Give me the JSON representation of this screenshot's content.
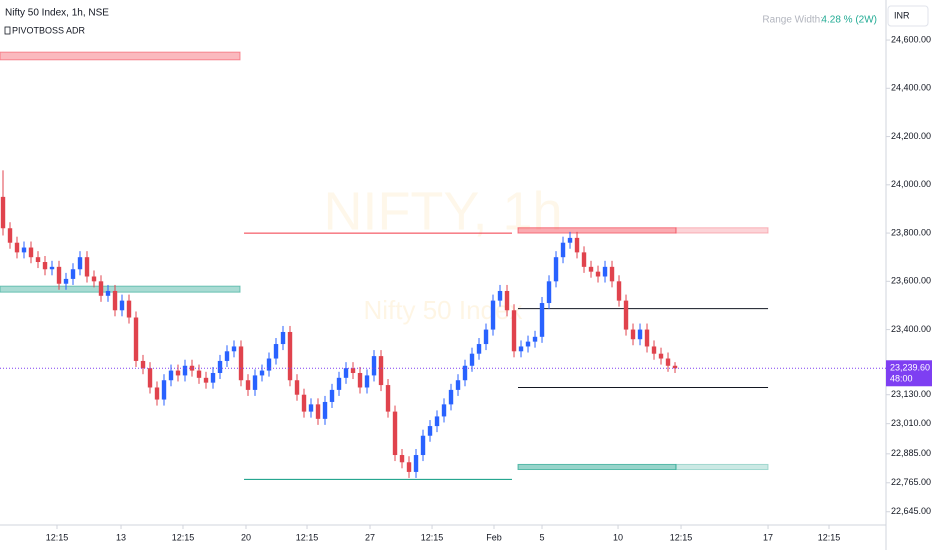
{
  "chart_data": {
    "type": "candlestick",
    "title": "Nifty 50 Index, 1h, NSE",
    "indicator": "PIVOTBOSS ADR",
    "watermark": "NIFTY, 1h",
    "watermark_sub": "Nifty 50 Index",
    "range_label": "Range Width:",
    "range_value": "4.28 % (2W)",
    "currency": "INR",
    "up_color": "#2962ff",
    "down_color": "#e0434d",
    "open": [
      23950,
      23820,
      23760,
      23720,
      23740,
      23700,
      23680,
      23650,
      23660,
      23590,
      23610,
      23650,
      23700,
      23620,
      23600,
      23540,
      23560,
      23480,
      23520,
      23450,
      23270,
      23240,
      23160,
      23110,
      23190,
      23230,
      23210,
      23250,
      23230,
      23200,
      23180,
      23220,
      23270,
      23310,
      23330,
      23190,
      23150,
      23210,
      23230,
      23280,
      23340,
      23390,
      23190,
      23130,
      23060,
      23090,
      23030,
      23100,
      23150,
      23200,
      23240,
      23220,
      23160,
      23210,
      23290,
      23170,
      23060,
      22880,
      22850,
      22810,
      22880,
      22960,
      23000,
      23040,
      23090,
      23150,
      23190,
      23250,
      23300,
      23340,
      23400,
      23520,
      23560,
      23480,
      23310,
      23330,
      23350,
      23370,
      23510,
      23600,
      23700,
      23760,
      23780,
      23720,
      23660,
      23640,
      23620,
      23660,
      23600,
      23520,
      23400,
      23360,
      23400,
      23330,
      23300,
      23280,
      23250
    ],
    "high": [
      24060,
      23845,
      23785,
      23765,
      23765,
      23725,
      23705,
      23685,
      23685,
      23635,
      23675,
      23725,
      23725,
      23645,
      23625,
      23585,
      23585,
      23545,
      23545,
      23475,
      23295,
      23265,
      23185,
      23215,
      23255,
      23255,
      23275,
      23275,
      23255,
      23225,
      23245,
      23295,
      23335,
      23355,
      23355,
      23215,
      23235,
      23255,
      23305,
      23365,
      23415,
      23415,
      23215,
      23155,
      23115,
      23115,
      23125,
      23175,
      23225,
      23265,
      23265,
      23245,
      23235,
      23315,
      23315,
      23195,
      23085,
      22905,
      22875,
      22905,
      22985,
      23025,
      23065,
      23115,
      23175,
      23215,
      23275,
      23325,
      23365,
      23425,
      23545,
      23585,
      23585,
      23505,
      23355,
      23375,
      23395,
      23535,
      23625,
      23725,
      23785,
      23805,
      23805,
      23745,
      23685,
      23665,
      23685,
      23685,
      23625,
      23545,
      23425,
      23425,
      23425,
      23355,
      23325,
      23305,
      23265
    ],
    "low": [
      23790,
      23735,
      23695,
      23695,
      23675,
      23655,
      23625,
      23625,
      23565,
      23565,
      23585,
      23625,
      23595,
      23575,
      23515,
      23515,
      23455,
      23455,
      23425,
      23245,
      23215,
      23135,
      23085,
      23085,
      23165,
      23185,
      23185,
      23205,
      23175,
      23155,
      23155,
      23195,
      23245,
      23285,
      23165,
      23125,
      23125,
      23185,
      23205,
      23255,
      23315,
      23165,
      23105,
      23035,
      23035,
      23005,
      23005,
      23075,
      23125,
      23175,
      23195,
      23135,
      23135,
      23185,
      23145,
      23035,
      22855,
      22825,
      22785,
      22785,
      22855,
      22935,
      22975,
      23015,
      23065,
      23125,
      23165,
      23225,
      23275,
      23315,
      23375,
      23495,
      23455,
      23285,
      23285,
      23305,
      23325,
      23345,
      23485,
      23575,
      23675,
      23735,
      23695,
      23635,
      23615,
      23595,
      23595,
      23575,
      23495,
      23375,
      23335,
      23335,
      23305,
      23275,
      23255,
      23225,
      23220
    ],
    "close": [
      23820,
      23760,
      23720,
      23740,
      23700,
      23680,
      23650,
      23660,
      23590,
      23610,
      23650,
      23700,
      23620,
      23600,
      23540,
      23560,
      23480,
      23520,
      23450,
      23270,
      23240,
      23160,
      23110,
      23190,
      23230,
      23210,
      23250,
      23230,
      23200,
      23180,
      23220,
      23270,
      23310,
      23330,
      23190,
      23150,
      23210,
      23230,
      23280,
      23340,
      23390,
      23190,
      23130,
      23060,
      23090,
      23030,
      23100,
      23150,
      23200,
      23240,
      23220,
      23160,
      23210,
      23290,
      23170,
      23060,
      22880,
      22850,
      22810,
      22880,
      22960,
      23000,
      23040,
      23090,
      23150,
      23190,
      23250,
      23300,
      23340,
      23400,
      23520,
      23560,
      23480,
      23310,
      23330,
      23350,
      23370,
      23510,
      23600,
      23700,
      23760,
      23780,
      23720,
      23660,
      23640,
      23620,
      23660,
      23600,
      23520,
      23400,
      23360,
      23400,
      23330,
      23300,
      23280,
      23250,
      23239.6
    ],
    "levels": [
      {
        "from": -0.43,
        "to": 33.86,
        "upper": 24550,
        "lower": 24518,
        "color": "#f23645",
        "opacity": 0.5
      },
      {
        "from": -0.43,
        "to": 33.86,
        "upper": 23580,
        "lower": 23555,
        "color": "#089981",
        "opacity": 0.5
      },
      {
        "from": 34.43,
        "to": 72.71,
        "price": 23800,
        "color": "#f23645",
        "opacity": 1
      },
      {
        "from": 34.43,
        "to": 72.71,
        "price": 22779,
        "color": "#089981",
        "opacity": 1
      },
      {
        "from": 73.57,
        "to": 96.14,
        "upper": 23822,
        "lower": 23800,
        "color": "#f23645",
        "opacity": 0.6
      },
      {
        "from": 96.14,
        "to": 109.29,
        "upper": 23822,
        "lower": 23800,
        "color": "#f23645",
        "opacity": 0.3
      },
      {
        "from": 73.57,
        "to": 109.29,
        "price": 23487,
        "color": "#131722",
        "opacity": 1
      },
      {
        "from": 73.57,
        "to": 109.29,
        "price": 23160,
        "color": "#131722",
        "opacity": 1
      },
      {
        "from": 73.57,
        "to": 96.14,
        "upper": 22841,
        "lower": 22820,
        "color": "#089981",
        "opacity": 0.6
      },
      {
        "from": 96.14,
        "to": 109.29,
        "upper": 22841,
        "lower": 22820,
        "color": "#089981",
        "opacity": 0.3
      }
    ],
    "last_price": {
      "value": 23239.6,
      "label": "23,239.60"
    },
    "countdown": "48:00",
    "last_color": "#7e3ff2",
    "xlim": [
      -0.43,
      126.14
    ],
    "ylim": [
      22590,
      24766
    ],
    "xticks": [
      {
        "value": 7.71,
        "label": "12:15"
      },
      {
        "value": 16.86,
        "label": "13"
      },
      {
        "value": 25.71,
        "label": "12:15"
      },
      {
        "value": 34.71,
        "label": "20"
      },
      {
        "value": 43.43,
        "label": "12:15"
      },
      {
        "value": 52.43,
        "label": "27"
      },
      {
        "value": 61.29,
        "label": "12:15"
      },
      {
        "value": 70.14,
        "label": "Feb"
      },
      {
        "value": 77,
        "label": "5"
      },
      {
        "value": 87.86,
        "label": "10"
      },
      {
        "value": 96.86,
        "label": "12:15"
      },
      {
        "value": 109.29,
        "label": "17"
      },
      {
        "value": 118,
        "label": "12:15"
      }
    ],
    "yticks": [
      {
        "value": 24600,
        "label": "24,600.00"
      },
      {
        "value": 24400,
        "label": "24,400.00"
      },
      {
        "value": 24200,
        "label": "24,200.00"
      },
      {
        "value": 24000,
        "label": "24,000.00"
      },
      {
        "value": 23800,
        "label": "23,800.00"
      },
      {
        "value": 23600,
        "label": "23,600.00"
      },
      {
        "value": 23400,
        "label": "23,400.00"
      },
      {
        "value": 23130,
        "label": "23,130.00"
      },
      {
        "value": 23010,
        "label": "23,010.00"
      },
      {
        "value": 22885,
        "label": "22,885.00"
      },
      {
        "value": 22765,
        "label": "22,765.00"
      },
      {
        "value": 22645,
        "label": "22,645.00"
      }
    ]
  }
}
